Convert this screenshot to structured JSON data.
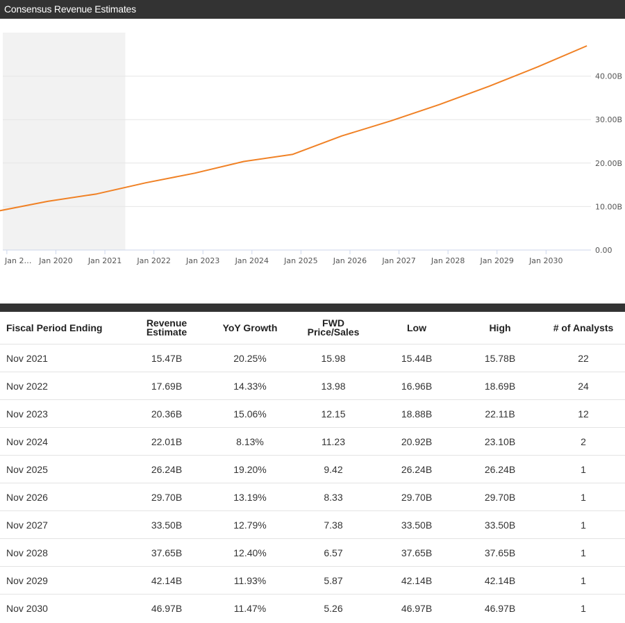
{
  "title": "Consensus Revenue Estimates",
  "chart_data": {
    "type": "line",
    "x": [
      "2019-11",
      "2020-11",
      "2021-11",
      "2022-11",
      "2023-11",
      "2024-11",
      "2025-11",
      "2026-11",
      "2027-11",
      "2028-11",
      "2029-11",
      "2030-11"
    ],
    "series": [
      {
        "values": [
          9.0,
          11.2,
          12.9,
          15.47,
          17.69,
          20.36,
          22.01,
          26.24,
          29.7,
          33.5,
          37.65,
          42.14,
          46.97
        ],
        "x": [
          "2018-11",
          "2019-11",
          "2020-11",
          "2021-11",
          "2022-11",
          "2023-11",
          "2024-11",
          "2025-11",
          "2026-11",
          "2027-11",
          "2028-11",
          "2029-11",
          "2030-11"
        ],
        "color": "#f08125"
      }
    ],
    "x_tick_labels": [
      "Jan 2…",
      "Jan 2020",
      "Jan 2021",
      "Jan 2022",
      "Jan 2023",
      "Jan 2024",
      "Jan 2025",
      "Jan 2026",
      "Jan 2027",
      "Jan 2028",
      "Jan 2029",
      "Jan 2030"
    ],
    "x_ticks": [
      "2019-01",
      "2020-01",
      "2021-01",
      "2022-01",
      "2023-01",
      "2024-01",
      "2025-01",
      "2026-01",
      "2027-01",
      "2028-01",
      "2029-01",
      "2030-01"
    ],
    "y_ticks": [
      0,
      10,
      20,
      30,
      40
    ],
    "y_tick_labels": [
      "0.00",
      "10.00B",
      "20.00B",
      "30.00B",
      "40.00B"
    ],
    "xlim": [
      "2018-12",
      "2030-12"
    ],
    "ylim": [
      0,
      50
    ],
    "shaded_region": [
      "2018-12",
      "2021-06"
    ],
    "grid": true,
    "y_axis_side": "right"
  },
  "table": {
    "headers": [
      [
        "Fiscal Period Ending"
      ],
      [
        "Revenue",
        "Estimate"
      ],
      [
        "YoY Growth"
      ],
      [
        "FWD",
        "Price/Sales"
      ],
      [
        "Low"
      ],
      [
        "High"
      ],
      [
        "# of Analysts"
      ]
    ],
    "rows": [
      [
        "Nov 2021",
        "15.47B",
        "20.25%",
        "15.98",
        "15.44B",
        "15.78B",
        "22"
      ],
      [
        "Nov 2022",
        "17.69B",
        "14.33%",
        "13.98",
        "16.96B",
        "18.69B",
        "24"
      ],
      [
        "Nov 2023",
        "20.36B",
        "15.06%",
        "12.15",
        "18.88B",
        "22.11B",
        "12"
      ],
      [
        "Nov 2024",
        "22.01B",
        "8.13%",
        "11.23",
        "20.92B",
        "23.10B",
        "2"
      ],
      [
        "Nov 2025",
        "26.24B",
        "19.20%",
        "9.42",
        "26.24B",
        "26.24B",
        "1"
      ],
      [
        "Nov 2026",
        "29.70B",
        "13.19%",
        "8.33",
        "29.70B",
        "29.70B",
        "1"
      ],
      [
        "Nov 2027",
        "33.50B",
        "12.79%",
        "7.38",
        "33.50B",
        "33.50B",
        "1"
      ],
      [
        "Nov 2028",
        "37.65B",
        "12.40%",
        "6.57",
        "37.65B",
        "37.65B",
        "1"
      ],
      [
        "Nov 2029",
        "42.14B",
        "11.93%",
        "5.87",
        "42.14B",
        "42.14B",
        "1"
      ],
      [
        "Nov 2030",
        "46.97B",
        "11.47%",
        "5.26",
        "46.97B",
        "46.97B",
        "1"
      ]
    ]
  }
}
